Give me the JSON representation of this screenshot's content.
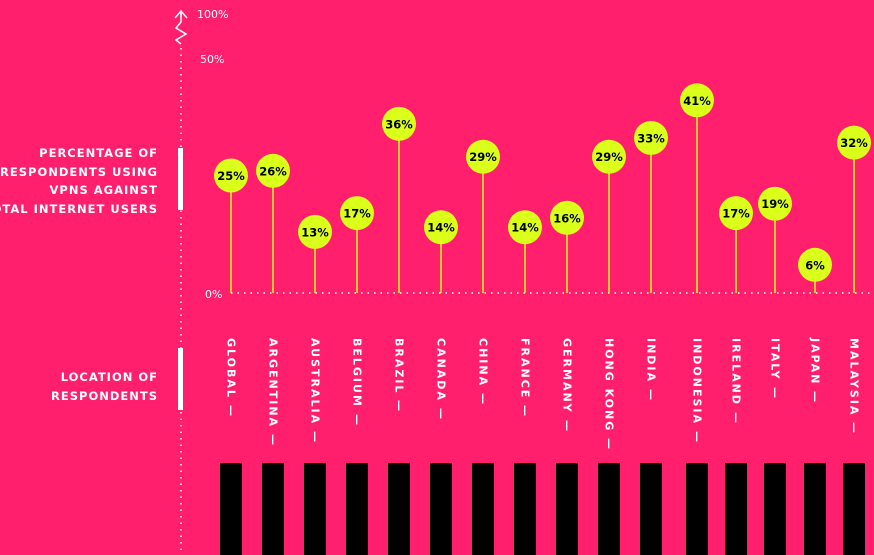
{
  "labels": {
    "percentage": [
      "PERCENTAGE OF",
      "RESPONDENTS USING",
      "VPNS AGAINST",
      "TOTAL INTERNET USERS"
    ],
    "location": [
      "LOCATION OF",
      "RESPONDENTS"
    ]
  },
  "axis": {
    "tick_100": "100%",
    "tick_50": "50%",
    "tick_0": "0%"
  },
  "colors": {
    "background": "#FF1F6D",
    "bubble": "#D9FF1A",
    "stem": "#D9FF1A",
    "text_dark": "#000000",
    "text_light": "#FFFFFF",
    "block": "#000000"
  },
  "chart_data": {
    "type": "lollipop",
    "ylim": [
      0,
      100
    ],
    "axis_break": true,
    "categories": [
      "GLOBAL",
      "ARGENTINA",
      "AUSTRALIA",
      "BELGIUM",
      "BRAZIL",
      "CANADA",
      "CHINA",
      "FRANCE",
      "GERMANY",
      "HONG KONG",
      "INDIA",
      "INDONESIA",
      "IRELAND",
      "ITALY",
      "JAPAN",
      "MALAYSIA"
    ],
    "values": [
      25,
      26,
      13,
      17,
      36,
      14,
      29,
      14,
      16,
      29,
      33,
      41,
      17,
      19,
      6,
      32
    ],
    "value_labels": [
      "25%",
      "26%",
      "13%",
      "17%",
      "36%",
      "14%",
      "29%",
      "14%",
      "16%",
      "29%",
      "33%",
      "41%",
      "17%",
      "19%",
      "6%",
      "32%"
    ]
  }
}
